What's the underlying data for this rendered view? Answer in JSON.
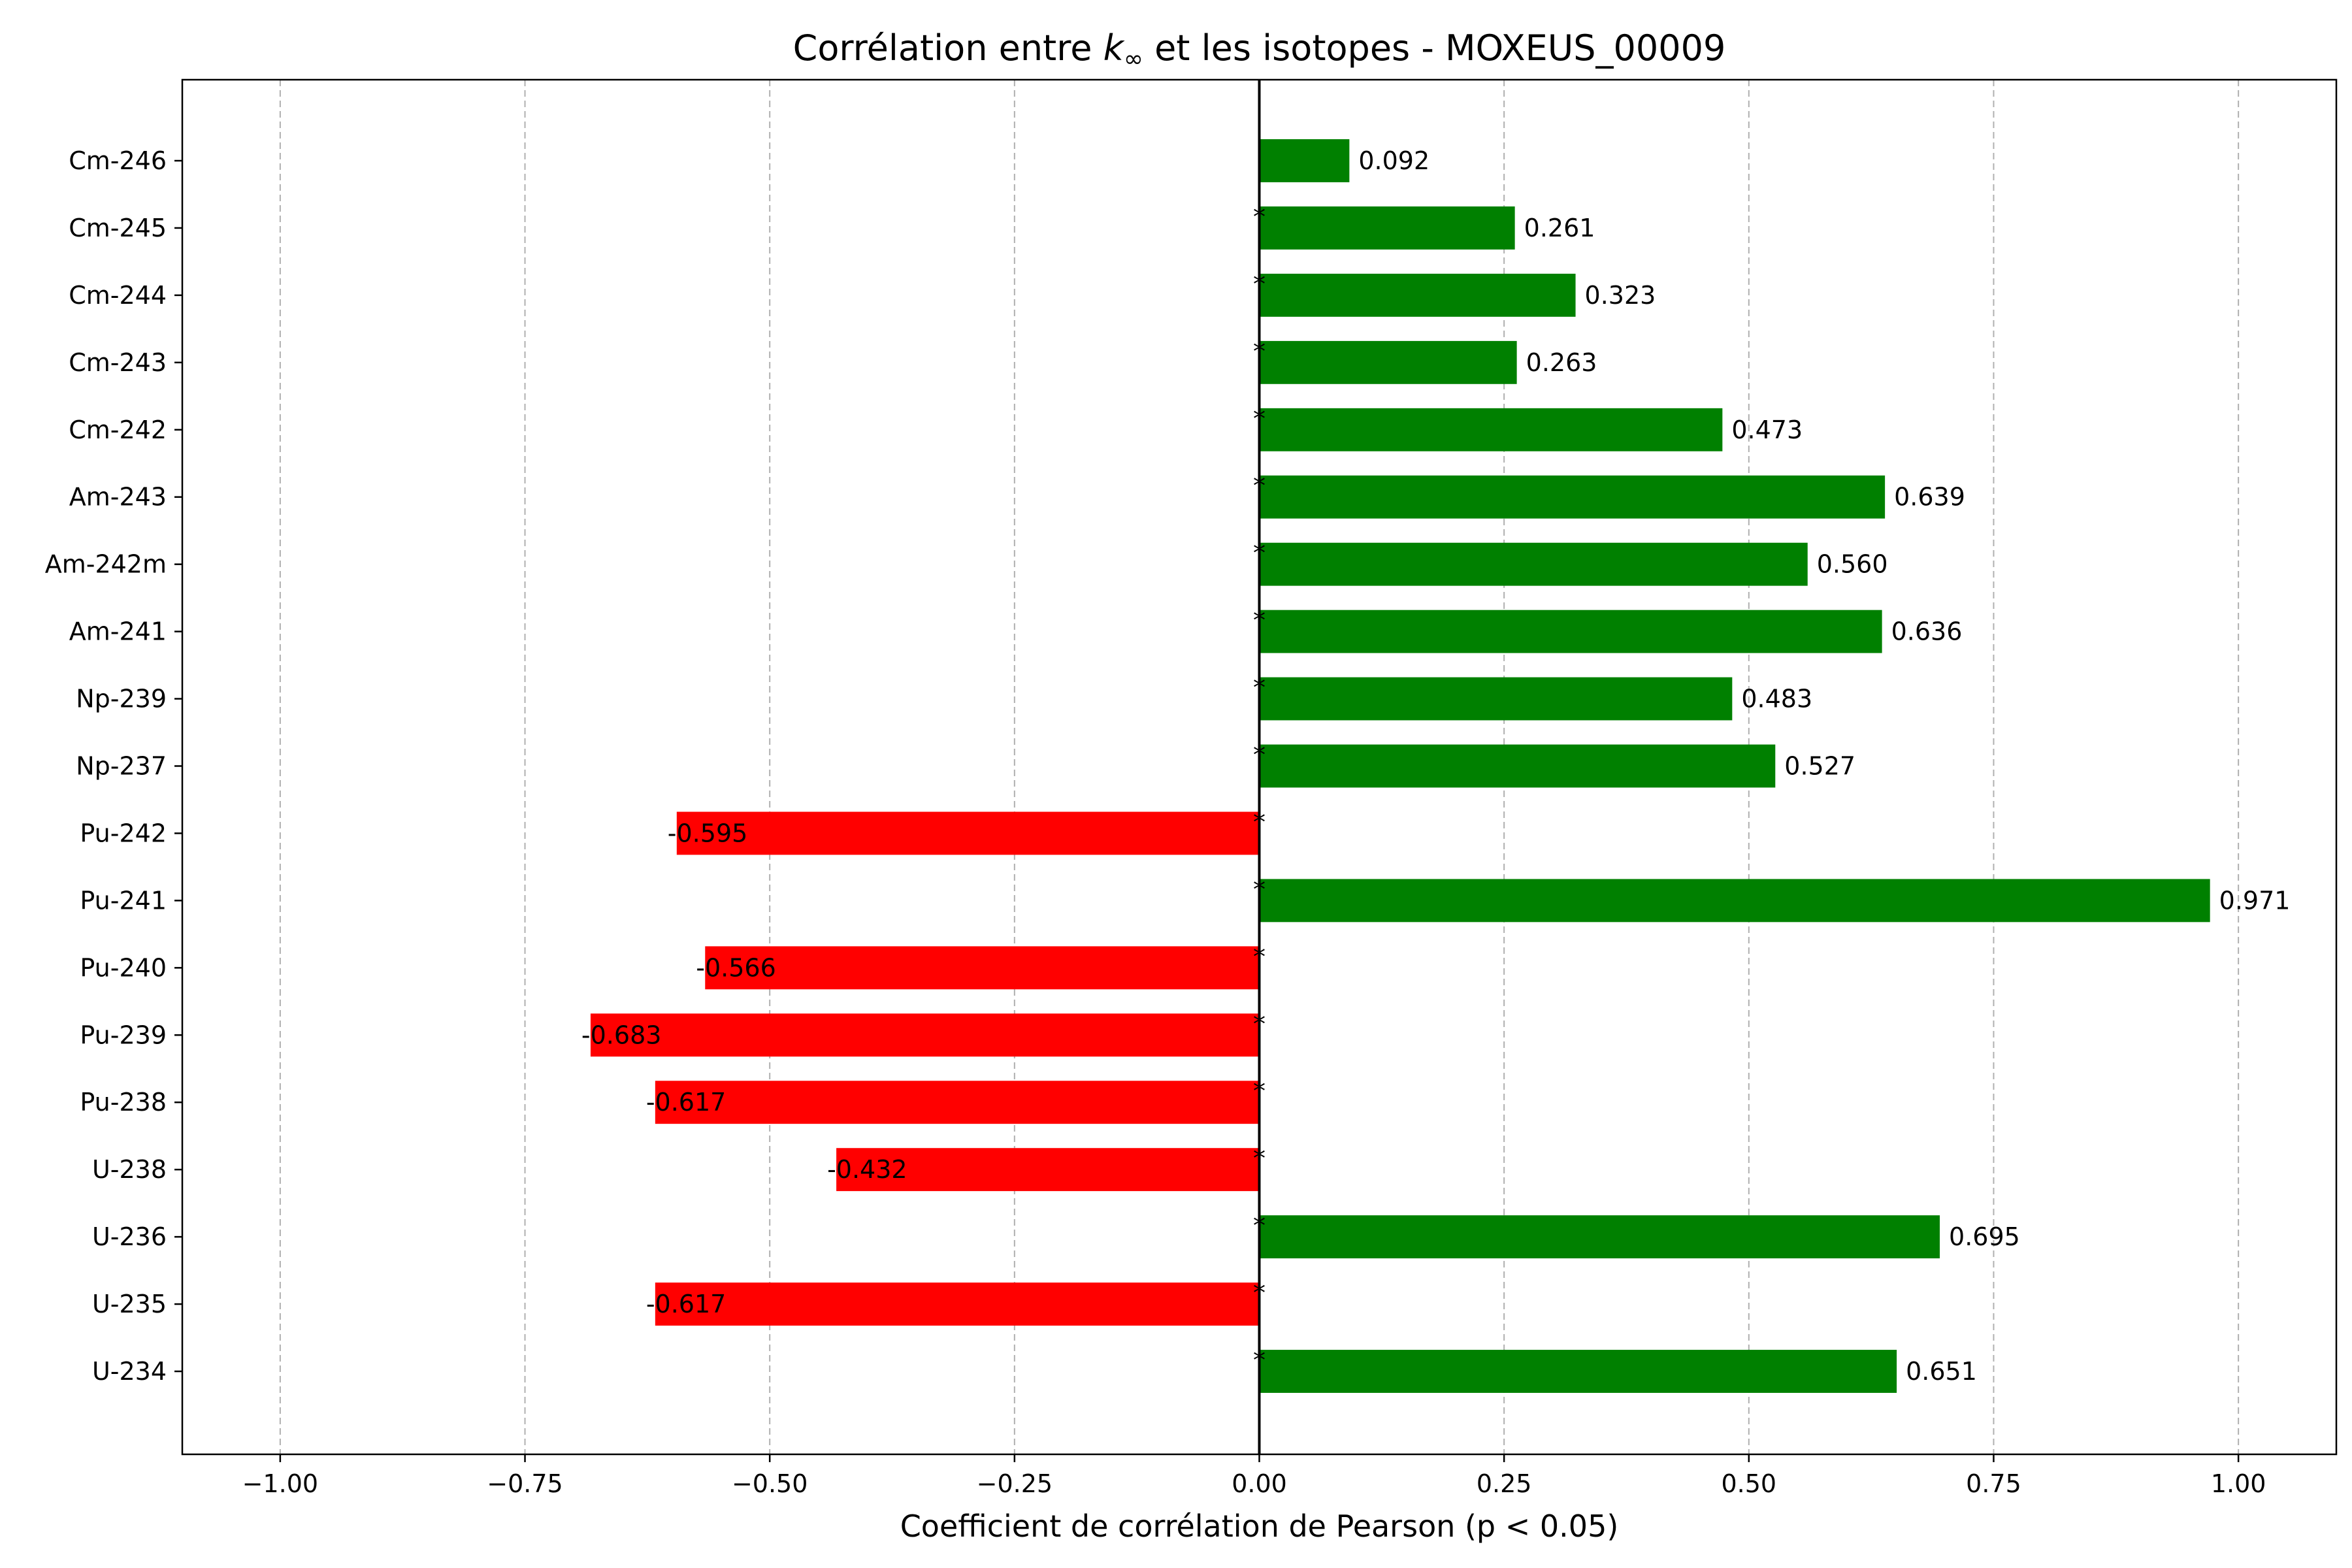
{
  "chart_data": {
    "type": "bar",
    "orientation": "horizontal",
    "title_prefix": "Corrélation entre ",
    "title_symbol": "k",
    "title_subscript": "∞",
    "title_suffix": " et les isotopes - MOXEUS_00009",
    "xlabel": "Coefficient de corrélation de Pearson (p < 0.05)",
    "ylabel": "",
    "xlim": [
      -1.1,
      1.1
    ],
    "x_ticks": [
      -1.0,
      -0.75,
      -0.5,
      -0.25,
      0.0,
      0.25,
      0.5,
      0.75,
      1.0
    ],
    "x_tick_labels": [
      "−1.00",
      "−0.75",
      "−0.50",
      "−0.25",
      "0.00",
      "0.25",
      "0.50",
      "0.75",
      "1.00"
    ],
    "grid": "x-axis dashed",
    "categories": [
      "U-234",
      "U-235",
      "U-236",
      "U-238",
      "Pu-238",
      "Pu-239",
      "Pu-240",
      "Pu-241",
      "Pu-242",
      "Np-237",
      "Np-239",
      "Am-241",
      "Am-242m",
      "Am-243",
      "Cm-242",
      "Cm-243",
      "Cm-244",
      "Cm-245",
      "Cm-246"
    ],
    "values": [
      0.651,
      -0.617,
      0.695,
      -0.432,
      -0.617,
      -0.683,
      -0.566,
      0.971,
      -0.595,
      0.527,
      0.483,
      0.636,
      0.56,
      0.639,
      0.473,
      0.263,
      0.323,
      0.261,
      0.092
    ],
    "value_labels": [
      "0.651",
      "-0.617",
      "0.695",
      "-0.432",
      "-0.617",
      "-0.683",
      "-0.566",
      "0.971",
      "-0.595",
      "0.527",
      "0.483",
      "0.636",
      "0.560",
      "0.639",
      "0.473",
      "0.263",
      "0.323",
      "0.261",
      "0.092"
    ],
    "significance_marks": [
      "*",
      "*",
      "*",
      "*",
      "*",
      "*",
      "*",
      "*",
      "*",
      "*",
      "*",
      "*",
      "*",
      "*",
      "*",
      "*",
      "*",
      "*",
      ""
    ],
    "colors": {
      "positive": "#008000",
      "negative": "#ff0000",
      "zero_line": "#000000",
      "grid": "#b0b0b0"
    }
  }
}
